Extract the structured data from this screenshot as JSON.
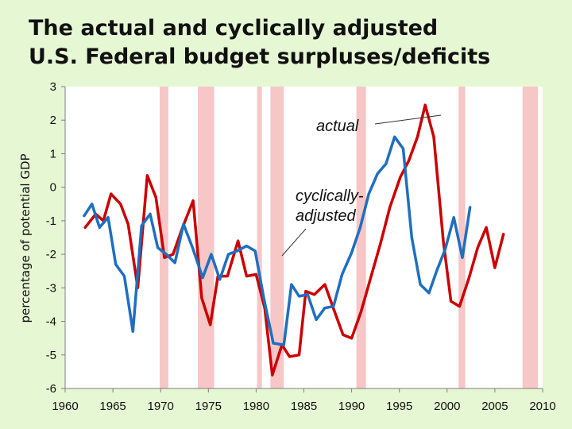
{
  "chart_data": {
    "type": "line",
    "title_lines": [
      "The actual and cyclically adjusted",
      "U.S. Federal budget surpluses/deficits"
    ],
    "xlabel": "",
    "ylabel": "percentage of potential GDP",
    "xlim": [
      1960,
      2010
    ],
    "ylim": [
      -6,
      3
    ],
    "x_ticks": [
      1960,
      1965,
      1970,
      1975,
      1980,
      1985,
      1990,
      1995,
      2000,
      2005,
      2010
    ],
    "y_ticks": [
      3,
      2,
      1,
      0,
      -1,
      -2,
      -3,
      -4,
      -5,
      -6
    ],
    "grid": false,
    "legend": "none",
    "recession_shading": [
      {
        "start": 1969.9,
        "end": 1970.8
      },
      {
        "start": 1973.9,
        "end": 1975.6
      },
      {
        "start": 1980.1,
        "end": 1980.6
      },
      {
        "start": 1981.5,
        "end": 1982.9
      },
      {
        "start": 1990.5,
        "end": 1991.5
      },
      {
        "start": 2001.2,
        "end": 2001.9
      },
      {
        "start": 2007.9,
        "end": 2009.5
      }
    ],
    "series": [
      {
        "color": "#cc0000",
        "label_key": "actual",
        "points": [
          [
            1962.1,
            -1.2
          ],
          [
            1963.2,
            -0.8
          ],
          [
            1964.0,
            -1.0
          ],
          [
            1964.8,
            -0.2
          ],
          [
            1965.8,
            -0.5
          ],
          [
            1966.6,
            -1.1
          ],
          [
            1967.6,
            -3.0
          ],
          [
            1968.6,
            0.35
          ],
          [
            1969.5,
            -0.3
          ],
          [
            1970.4,
            -2.1
          ],
          [
            1971.3,
            -2.0
          ],
          [
            1972.3,
            -1.2
          ],
          [
            1973.4,
            -0.4
          ],
          [
            1974.3,
            -3.3
          ],
          [
            1975.2,
            -4.1
          ],
          [
            1976.0,
            -2.65
          ],
          [
            1977.0,
            -2.65
          ],
          [
            1978.1,
            -1.6
          ],
          [
            1979.0,
            -2.65
          ],
          [
            1980.0,
            -2.6
          ],
          [
            1980.9,
            -3.6
          ],
          [
            1981.7,
            -5.6
          ],
          [
            1982.7,
            -4.7
          ],
          [
            1983.5,
            -5.05
          ],
          [
            1984.5,
            -5.0
          ],
          [
            1985.2,
            -3.1
          ],
          [
            1986.1,
            -3.2
          ],
          [
            1987.2,
            -2.9
          ],
          [
            1988.2,
            -3.7
          ],
          [
            1989.1,
            -4.4
          ],
          [
            1990.0,
            -4.5
          ],
          [
            1991.0,
            -3.7
          ],
          [
            1992.0,
            -2.7
          ],
          [
            1993.0,
            -1.7
          ],
          [
            1994.0,
            -0.6
          ],
          [
            1995.1,
            0.3
          ],
          [
            1996.0,
            0.8
          ],
          [
            1996.9,
            1.5
          ],
          [
            1997.7,
            2.45
          ],
          [
            1998.6,
            1.5
          ],
          [
            1999.6,
            -1.6
          ],
          [
            2000.4,
            -3.4
          ],
          [
            2001.3,
            -3.55
          ],
          [
            2002.3,
            -2.7
          ],
          [
            2003.2,
            -1.8
          ],
          [
            2004.1,
            -1.2
          ],
          [
            2005.0,
            -2.4
          ],
          [
            2005.9,
            -1.4
          ]
        ]
      },
      {
        "color": "#1f6fc0",
        "label_key": "cyclically_adjusted",
        "points": [
          [
            1962.0,
            -0.85
          ],
          [
            1962.8,
            -0.5
          ],
          [
            1963.6,
            -1.2
          ],
          [
            1964.5,
            -0.9
          ],
          [
            1965.3,
            -2.3
          ],
          [
            1966.2,
            -2.65
          ],
          [
            1967.1,
            -4.3
          ],
          [
            1968.0,
            -1.15
          ],
          [
            1968.9,
            -0.8
          ],
          [
            1969.7,
            -1.8
          ],
          [
            1970.6,
            -2.0
          ],
          [
            1971.5,
            -2.25
          ],
          [
            1972.4,
            -1.1
          ],
          [
            1973.4,
            -1.85
          ],
          [
            1974.4,
            -2.7
          ],
          [
            1975.3,
            -2.0
          ],
          [
            1976.2,
            -2.75
          ],
          [
            1977.1,
            -2.0
          ],
          [
            1978.0,
            -1.9
          ],
          [
            1979.0,
            -1.75
          ],
          [
            1979.9,
            -1.9
          ],
          [
            1980.8,
            -3.3
          ],
          [
            1981.8,
            -4.65
          ],
          [
            1982.9,
            -4.7
          ],
          [
            1983.7,
            -2.9
          ],
          [
            1984.5,
            -3.25
          ],
          [
            1985.4,
            -3.2
          ],
          [
            1986.3,
            -3.95
          ],
          [
            1987.2,
            -3.6
          ],
          [
            1988.1,
            -3.55
          ],
          [
            1989.0,
            -2.6
          ],
          [
            1990.0,
            -1.95
          ],
          [
            1990.9,
            -1.2
          ],
          [
            1991.8,
            -0.2
          ],
          [
            1992.7,
            0.4
          ],
          [
            1993.6,
            0.7
          ],
          [
            1994.5,
            1.5
          ],
          [
            1995.4,
            1.15
          ],
          [
            1996.3,
            -1.5
          ],
          [
            1997.2,
            -2.9
          ],
          [
            1998.1,
            -3.15
          ],
          [
            1998.9,
            -2.5
          ],
          [
            1999.8,
            -1.85
          ],
          [
            2000.7,
            -0.9
          ],
          [
            2001.6,
            -2.1
          ],
          [
            2002.4,
            -0.6
          ]
        ]
      }
    ]
  },
  "annotations": {
    "actual": "actual",
    "cyclically_adjusted_lines": [
      "cyclically-",
      "adjusted"
    ]
  }
}
